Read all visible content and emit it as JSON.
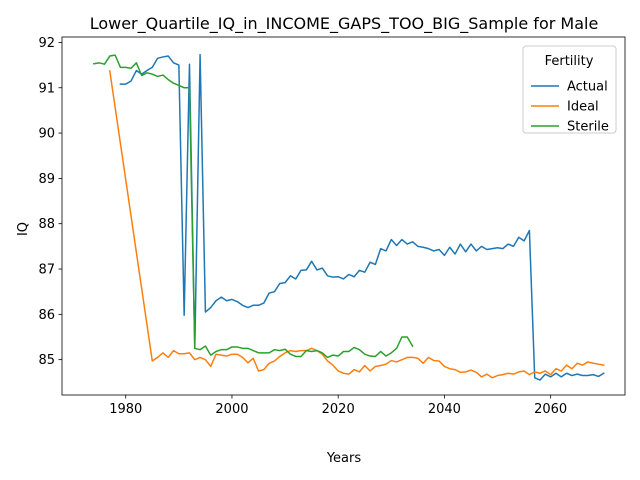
{
  "chart_data": {
    "type": "line",
    "title": "Lower_Quartile_IQ_in_INCOME_GAPS_TOO_BIG_Sample for Male",
    "xlabel": "Years",
    "ylabel": "IQ",
    "xlim": [
      1968,
      2074
    ],
    "ylim": [
      84.22,
      92.12
    ],
    "xticks": [
      1980,
      2000,
      2020,
      2040,
      2060
    ],
    "yticks": [
      85,
      86,
      87,
      88,
      89,
      90,
      91,
      92
    ],
    "grid": false,
    "legend": {
      "title": "Fertility",
      "position": "top-right"
    },
    "series": [
      {
        "name": "Actual",
        "color": "#1f77b4",
        "x": [
          1979,
          1980,
          1981,
          1982,
          1983,
          1984,
          1985,
          1986,
          1987,
          1988,
          1989,
          1990,
          1991,
          1992,
          1993,
          1994,
          1995,
          1996,
          1997,
          1998,
          1999,
          2000,
          2001,
          2002,
          2003,
          2004,
          2005,
          2006,
          2007,
          2008,
          2009,
          2010,
          2011,
          2012,
          2013,
          2014,
          2015,
          2016,
          2017,
          2018,
          2019,
          2020,
          2021,
          2022,
          2023,
          2024,
          2025,
          2026,
          2027,
          2028,
          2029,
          2030,
          2031,
          2032,
          2033,
          2034,
          2035,
          2036,
          2037,
          2038,
          2039,
          2040,
          2041,
          2042,
          2043,
          2044,
          2045,
          2046,
          2047,
          2048,
          2049,
          2050,
          2051,
          2052,
          2053,
          2054,
          2055,
          2056,
          2057,
          2058,
          2059,
          2060,
          2061,
          2062,
          2063,
          2064,
          2065,
          2066,
          2067,
          2068,
          2069,
          2070
        ],
        "values": [
          91.08,
          91.08,
          91.15,
          91.38,
          91.3,
          91.38,
          91.45,
          91.65,
          91.68,
          91.7,
          91.55,
          91.5,
          85.98,
          91.52,
          85.25,
          91.73,
          86.05,
          86.15,
          86.3,
          86.38,
          86.3,
          86.33,
          86.28,
          86.2,
          86.15,
          86.2,
          86.2,
          86.25,
          86.47,
          86.5,
          86.68,
          86.7,
          86.85,
          86.78,
          86.97,
          86.98,
          87.17,
          86.98,
          87.02,
          86.85,
          86.82,
          86.83,
          86.78,
          86.88,
          86.83,
          86.97,
          86.93,
          87.15,
          87.1,
          87.45,
          87.4,
          87.65,
          87.52,
          87.65,
          87.55,
          87.6,
          87.5,
          87.48,
          87.45,
          87.4,
          87.43,
          87.3,
          87.48,
          87.33,
          87.55,
          87.38,
          87.55,
          87.4,
          87.5,
          87.43,
          87.45,
          87.47,
          87.45,
          87.55,
          87.5,
          87.7,
          87.62,
          87.85,
          84.6,
          84.55,
          84.68,
          84.62,
          84.7,
          84.62,
          84.7,
          84.65,
          84.68,
          84.65,
          84.65,
          84.67,
          84.63,
          84.7
        ]
      },
      {
        "name": "Ideal",
        "color": "#ff7f0e",
        "x": [
          1977,
          1985,
          1986,
          1987,
          1988,
          1989,
          1990,
          1991,
          1992,
          1993,
          1994,
          1995,
          1996,
          1997,
          1998,
          1999,
          2000,
          2001,
          2002,
          2003,
          2004,
          2005,
          2006,
          2007,
          2008,
          2009,
          2010,
          2011,
          2012,
          2013,
          2014,
          2015,
          2016,
          2017,
          2018,
          2019,
          2020,
          2021,
          2022,
          2023,
          2024,
          2025,
          2026,
          2027,
          2028,
          2029,
          2030,
          2031,
          2032,
          2033,
          2034,
          2035,
          2036,
          2037,
          2038,
          2039,
          2040,
          2041,
          2042,
          2043,
          2044,
          2045,
          2046,
          2047,
          2048,
          2049,
          2050,
          2051,
          2052,
          2053,
          2054,
          2055,
          2056,
          2057,
          2058,
          2059,
          2060,
          2061,
          2062,
          2063,
          2064,
          2065,
          2066,
          2067,
          2068,
          2069,
          2070
        ],
        "values": [
          91.37,
          84.97,
          85.05,
          85.15,
          85.05,
          85.2,
          85.13,
          85.13,
          85.15,
          85.0,
          85.05,
          85.0,
          84.85,
          85.12,
          85.1,
          85.08,
          85.12,
          85.12,
          85.05,
          84.93,
          85.03,
          84.75,
          84.78,
          84.92,
          84.97,
          85.07,
          85.15,
          85.2,
          85.18,
          85.2,
          85.2,
          85.25,
          85.2,
          85.12,
          84.97,
          84.88,
          84.75,
          84.7,
          84.68,
          84.78,
          84.73,
          84.87,
          84.75,
          84.85,
          84.87,
          84.9,
          84.98,
          84.95,
          85.0,
          85.05,
          85.05,
          85.03,
          84.92,
          85.05,
          84.98,
          84.97,
          84.85,
          84.8,
          84.78,
          84.72,
          84.73,
          84.77,
          84.72,
          84.62,
          84.68,
          84.6,
          84.65,
          84.67,
          84.7,
          84.68,
          84.73,
          84.75,
          84.67,
          84.73,
          84.7,
          84.75,
          84.67,
          84.8,
          84.75,
          84.88,
          84.8,
          84.92,
          84.88,
          84.95,
          84.92,
          84.9,
          84.88
        ]
      },
      {
        "name": "Sterile",
        "color": "#2ca02c",
        "x": [
          1974,
          1975,
          1976,
          1977,
          1978,
          1979,
          1980,
          1981,
          1982,
          1983,
          1984,
          1985,
          1986,
          1987,
          1988,
          1989,
          1990,
          1991,
          1992,
          1993,
          1994,
          1995,
          1996,
          1997,
          1998,
          1999,
          2000,
          2001,
          2002,
          2003,
          2004,
          2005,
          2006,
          2007,
          2008,
          2009,
          2010,
          2011,
          2012,
          2013,
          2014,
          2015,
          2016,
          2017,
          2018,
          2019,
          2020,
          2021,
          2022,
          2023,
          2024,
          2025,
          2026,
          2027,
          2028,
          2029,
          2030,
          2031,
          2032,
          2033,
          2034
        ],
        "values": [
          91.53,
          91.55,
          91.52,
          91.7,
          91.72,
          91.45,
          91.45,
          91.43,
          91.55,
          91.27,
          91.33,
          91.3,
          91.25,
          91.28,
          91.18,
          91.1,
          91.05,
          91.0,
          91.0,
          85.25,
          85.22,
          85.3,
          85.1,
          85.18,
          85.22,
          85.22,
          85.28,
          85.28,
          85.25,
          85.25,
          85.2,
          85.15,
          85.15,
          85.15,
          85.22,
          85.2,
          85.23,
          85.12,
          85.07,
          85.07,
          85.2,
          85.18,
          85.2,
          85.15,
          85.05,
          85.1,
          85.08,
          85.18,
          85.18,
          85.27,
          85.22,
          85.12,
          85.08,
          85.07,
          85.18,
          85.08,
          85.15,
          85.25,
          85.5,
          85.5,
          85.3
        ]
      }
    ]
  }
}
